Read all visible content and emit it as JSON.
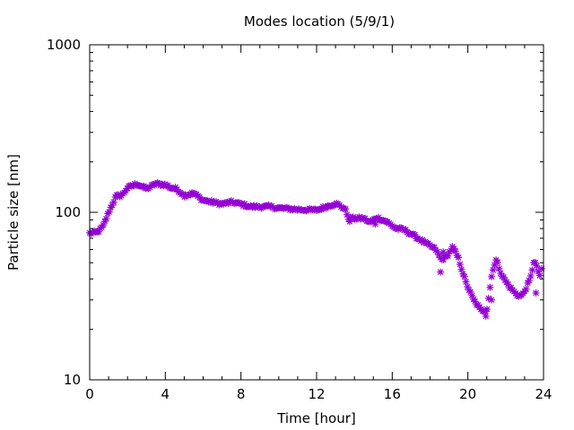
{
  "chart_data": {
    "type": "scatter",
    "title": "Modes location (5/9/1)",
    "xlabel": "Time [hour]",
    "ylabel": "Particle size [nm]",
    "xlim": [
      0,
      24
    ],
    "ylim": [
      10,
      1000
    ],
    "yscale": "log",
    "xticks": [
      {
        "value": 0,
        "label": "0"
      },
      {
        "value": 4,
        "label": "4"
      },
      {
        "value": 8,
        "label": "8"
      },
      {
        "value": 12,
        "label": "12"
      },
      {
        "value": 16,
        "label": "16"
      },
      {
        "value": 20,
        "label": "20"
      },
      {
        "value": 24,
        "label": "24"
      }
    ],
    "yticks": [
      {
        "value": 10,
        "label": "10"
      },
      {
        "value": 100,
        "label": "100"
      },
      {
        "value": 1000,
        "label": "1000"
      }
    ],
    "grid": false,
    "marker_color": "#9400d3",
    "marker": "asterisk",
    "keypoints_x": [
      0,
      0.4,
      0.7,
      1.0,
      1.4,
      1.7,
      2.0,
      2.5,
      3.0,
      3.5,
      4.0,
      4.3,
      4.6,
      5.0,
      5.5,
      6.0,
      7.0,
      7.5,
      8.0,
      8.5,
      9.0,
      9.5,
      10.0,
      11.0,
      12.0,
      12.5,
      13.0,
      13.5,
      13.7,
      14.0,
      14.5,
      14.8,
      15.2,
      15.7,
      16.2,
      16.6,
      17.2,
      17.8,
      18.3,
      18.6,
      18.9,
      19.2,
      19.5,
      19.9,
      20.3,
      20.7,
      21.0,
      21.3,
      21.5,
      21.8,
      22.2,
      22.6,
      22.9,
      23.3,
      23.5,
      23.8
    ],
    "keypoints_y": [
      75,
      76,
      82,
      100,
      125,
      126,
      140,
      148,
      138,
      148,
      146,
      140,
      138,
      126,
      130,
      118,
      112,
      115,
      112,
      108,
      108,
      108,
      106,
      104,
      103,
      108,
      113,
      105,
      92,
      92,
      92,
      87,
      93,
      88,
      80,
      79,
      72,
      65,
      60,
      52,
      55,
      62,
      53,
      38,
      30,
      26,
      26,
      45,
      52,
      42,
      36,
      32,
      32,
      40,
      52,
      42
    ],
    "n_points": 300,
    "extra_points": [
      {
        "x": 18.55,
        "y": 44
      },
      {
        "x": 18.7,
        "y": 58
      },
      {
        "x": 20.95,
        "y": 24
      },
      {
        "x": 21.25,
        "y": 30
      },
      {
        "x": 23.6,
        "y": 33
      },
      {
        "x": 23.9,
        "y": 46
      },
      {
        "x": 13.75,
        "y": 88
      },
      {
        "x": 15.1,
        "y": 85
      }
    ]
  }
}
